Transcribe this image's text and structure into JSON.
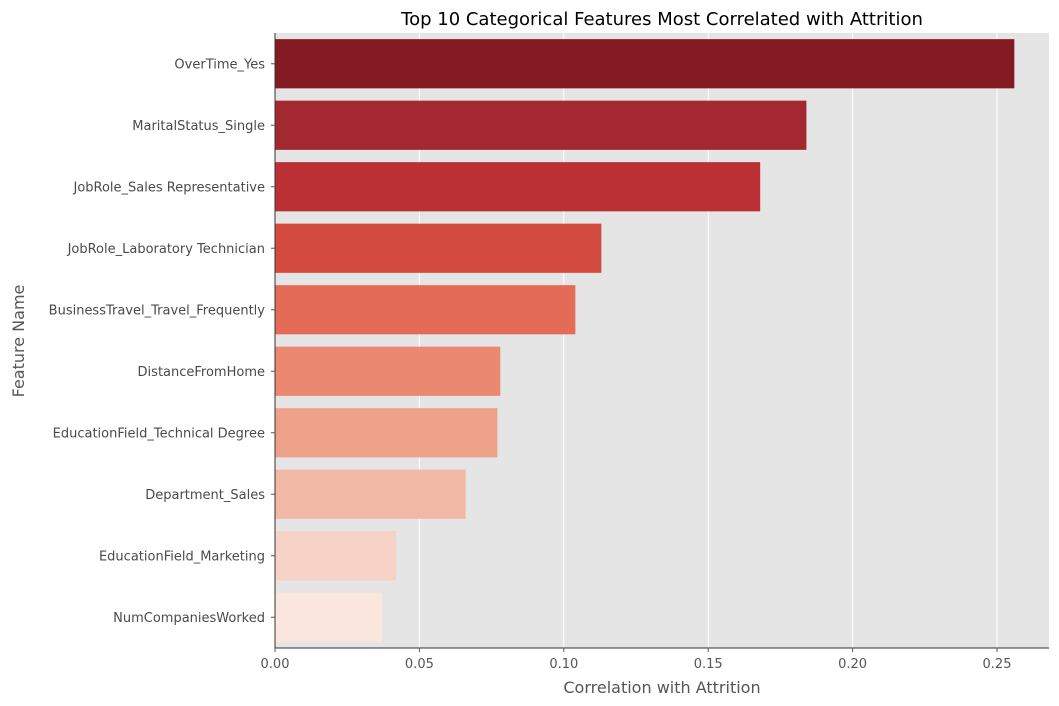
{
  "chart_data": {
    "type": "bar",
    "orientation": "horizontal",
    "title": "Top 10 Categorical Features Most Correlated with Attrition",
    "xlabel": "Correlation with Attrition",
    "ylabel": "Feature Name",
    "xlim": [
      0,
      0.268
    ],
    "xticks": [
      0.0,
      0.05,
      0.1,
      0.15,
      0.2,
      0.25
    ],
    "xtick_labels": [
      "0.00",
      "0.05",
      "0.10",
      "0.15",
      "0.20",
      "0.25"
    ],
    "grid": true,
    "categories": [
      "OverTime_Yes",
      "MaritalStatus_Single",
      "JobRole_Sales Representative",
      "JobRole_Laboratory Technician",
      "BusinessTravel_Travel_Frequently",
      "DistanceFromHome",
      "EducationField_Technical Degree",
      "Department_Sales",
      "EducationField_Marketing",
      "NumCompaniesWorked"
    ],
    "values": [
      0.256,
      0.184,
      0.168,
      0.113,
      0.104,
      0.078,
      0.077,
      0.066,
      0.042,
      0.037
    ],
    "colors": [
      "#841a22",
      "#a3282f",
      "#bb3034",
      "#d34a3e",
      "#e46b57",
      "#ea8870",
      "#eda188",
      "#f1b9a5",
      "#f6d3c6",
      "#fbe6de"
    ],
    "background": "#e5e5e5",
    "grid_color": "#ffffff"
  }
}
